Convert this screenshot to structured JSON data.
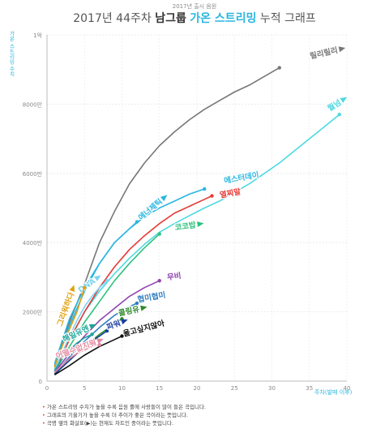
{
  "header": {
    "subtitle": "2017년 출시 음원",
    "title_plain": "2017년 44주차 ",
    "title_bold": "남그룹",
    "title_accent": "가온 스트리밍",
    "title_rest": " 누적 그래프"
  },
  "notes": [
    {
      "bullet": "•",
      "text": "가온 스트리밍 수치가 높을 수록 음원 롤에 사랑들이 많이 들은 곡입니다."
    },
    {
      "bullet": "•",
      "text": "그래프의 기울기가 높을 수록 더 추이가 좋은 곡이라는 뜻입니다."
    },
    {
      "bullet": "•",
      "text": "곡명 옆의 화살표(▶)는 현재도 차트인 중이라는 뜻입니다."
    }
  ],
  "colors": {
    "accent": "#29b6e0",
    "grid": "#e6e6e6",
    "axis": "#bbbbbb"
  },
  "chart_data": {
    "type": "line",
    "ylabel": "가온 스트리밍 수치",
    "xlabel": "주차(발매 이후)",
    "xlim": [
      0,
      40
    ],
    "ylim": [
      0,
      100000000
    ],
    "x_ticks": [
      0,
      5,
      10,
      15,
      20,
      25,
      30,
      35,
      40
    ],
    "x_tick_labels": [
      "0",
      "5",
      "10",
      "15",
      "20",
      "25",
      "30",
      "35",
      "40"
    ],
    "y_ticks": [
      0,
      20000000,
      40000000,
      60000000,
      80000000,
      100000000
    ],
    "y_tick_labels": [
      "0",
      "2000만",
      "4000만",
      "6000만",
      "8000만",
      "1억"
    ],
    "grid": true,
    "series": [
      {
        "name": "릴리릴리",
        "color": "#777777",
        "arrow": true,
        "label_at": [
          37,
          94000000
        ],
        "label_rot": -13,
        "x": [
          1,
          3,
          5,
          7,
          9,
          11,
          13,
          15,
          17,
          19,
          21,
          23,
          25,
          27,
          29,
          31
        ],
        "y": [
          4500000,
          17000000,
          28000000,
          40000000,
          49000000,
          57000000,
          63000000,
          68000000,
          72000000,
          75500000,
          78500000,
          81000000,
          83500000,
          85500000,
          88000000,
          90500000
        ]
      },
      {
        "name": "뭘넘",
        "color": "#4dd9e0",
        "arrow": true,
        "label_at": [
          38.5,
          79000000
        ],
        "label_rot": -32,
        "x": [
          1,
          3,
          5,
          7,
          9,
          11,
          13,
          15,
          17,
          19,
          21,
          23,
          25,
          27,
          29,
          31,
          33,
          35,
          37,
          39
        ],
        "y": [
          3500000,
          12000000,
          20000000,
          26000000,
          31000000,
          35500000,
          39500000,
          43000000,
          45500000,
          47800000,
          50000000,
          52000000,
          54500000,
          57000000,
          60000000,
          63000000,
          66500000,
          70000000,
          73500000,
          77000000
        ]
      },
      {
        "name": "에스터데이",
        "color": "#29b6e0",
        "arrow": false,
        "label_at": [
          26,
          58000000
        ],
        "label_rot": -10,
        "x": [
          1,
          3,
          5,
          7,
          9,
          11,
          13,
          15,
          17,
          19,
          21
        ],
        "y": [
          5000000,
          18000000,
          27000000,
          34000000,
          40000000,
          44000000,
          47500000,
          50000000,
          52000000,
          54000000,
          55500000
        ]
      },
      {
        "name": "열찌말",
        "color": "#e53935",
        "arrow": false,
        "label_at": [
          24.5,
          53500000
        ],
        "label_rot": -10,
        "x": [
          1,
          3,
          5,
          7,
          9,
          11,
          13,
          15,
          17,
          19,
          21,
          22
        ],
        "y": [
          3000000,
          12000000,
          20000000,
          27000000,
          33000000,
          38000000,
          42000000,
          45500000,
          48500000,
          50500000,
          52500000,
          53500000
        ]
      },
      {
        "name": "에너제틱",
        "color": "#29b6e0",
        "arrow": true,
        "label_at": [
          14,
          49000000
        ],
        "label_rot": -40,
        "x": [
          1,
          3,
          5,
          7,
          9,
          11,
          12
        ],
        "y": [
          4000000,
          16000000,
          26000000,
          34000000,
          40000000,
          44000000,
          46000000
        ]
      },
      {
        "name": "코코밥",
        "color": "#2ec27e",
        "arrow": true,
        "label_at": [
          18.5,
          44000000
        ],
        "label_rot": -8,
        "x": [
          1,
          3,
          5,
          7,
          9,
          11,
          13,
          15
        ],
        "y": [
          2500000,
          10000000,
          17000000,
          23000000,
          29000000,
          34000000,
          38500000,
          42500000
        ]
      },
      {
        "name": "DNA",
        "color": "#7fd4f0",
        "arrow": true,
        "label_at": [
          5.5,
          27000000
        ],
        "label_rot": -35,
        "x": [
          1,
          2,
          3,
          4,
          5,
          6,
          7,
          8
        ],
        "y": [
          3000000,
          8000000,
          13000000,
          17500000,
          21500000,
          24500000,
          27000000,
          29000000
        ]
      },
      {
        "name": "그리워하다",
        "color": "#e0a010",
        "arrow": true,
        "label_at": [
          2.8,
          20500000
        ],
        "label_rot": -70,
        "x": [
          1,
          2,
          3,
          4,
          5
        ],
        "y": [
          4000000,
          10000000,
          15000000,
          20000000,
          27000000
        ]
      },
      {
        "name": "무비",
        "color": "#8e44ad",
        "arrow": false,
        "label_at": [
          17,
          29500000
        ],
        "label_rot": -8,
        "x": [
          1,
          3,
          5,
          7,
          9,
          11,
          13,
          15
        ],
        "y": [
          2500000,
          8000000,
          13000000,
          17500000,
          21000000,
          24500000,
          27000000,
          29000000
        ]
      },
      {
        "name": "협미협미",
        "color": "#2e7dc0",
        "arrow": false,
        "label_at": [
          14,
          23500000
        ],
        "label_rot": -10,
        "x": [
          1,
          3,
          5,
          7,
          9,
          11,
          12
        ],
        "y": [
          2000000,
          7000000,
          11500000,
          15500000,
          19000000,
          21500000,
          22500000
        ]
      },
      {
        "name": "콜링유",
        "color": "#2e8b2e",
        "arrow": true,
        "label_at": [
          11,
          19500000
        ],
        "label_rot": -12,
        "x": [
          1,
          3,
          5,
          7,
          9,
          10
        ],
        "y": [
          2000000,
          6000000,
          10000000,
          13500000,
          16500000,
          18000000
        ]
      },
      {
        "name": "해일유엔",
        "color": "#1ea59a",
        "arrow": true,
        "label_at": [
          4,
          13000000
        ],
        "label_rot": -25,
        "x": [
          1,
          2,
          3,
          4,
          5,
          6
        ],
        "y": [
          3000000,
          6500000,
          9000000,
          11000000,
          12500000,
          13500000
        ]
      },
      {
        "name": "파워",
        "color": "#1a3fa0",
        "arrow": true,
        "label_at": [
          9,
          15500000
        ],
        "label_rot": -20,
        "x": [
          1,
          3,
          5,
          7,
          8
        ],
        "y": [
          2000000,
          6000000,
          10000000,
          13000000,
          14500000
        ]
      },
      {
        "name": "울고싶지않아",
        "color": "#111111",
        "arrow": false,
        "label_at": [
          13,
          14500000
        ],
        "label_rot": -15,
        "x": [
          1,
          3,
          5,
          7,
          9,
          10
        ],
        "y": [
          1800000,
          4500000,
          7500000,
          10000000,
          12000000,
          13000000
        ]
      },
      {
        "name": "어떨수없지뭐",
        "color": "#e48aa0",
        "arrow": true,
        "label_at": [
          4,
          8500000
        ],
        "label_rot": -20,
        "x": [
          1,
          2,
          3,
          4,
          5,
          6,
          7
        ],
        "y": [
          2500000,
          4500000,
          6500000,
          8000000,
          9000000,
          10000000,
          10500000
        ]
      }
    ]
  }
}
